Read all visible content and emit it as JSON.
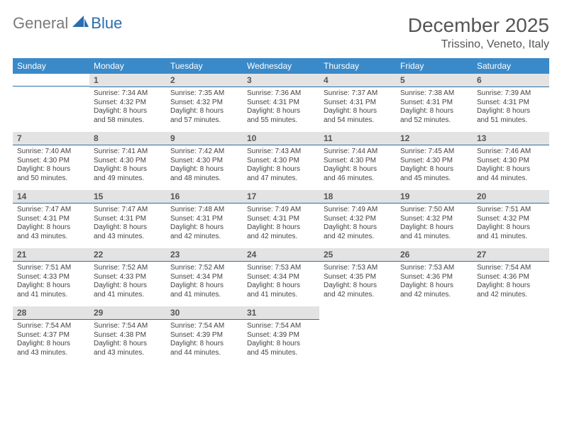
{
  "brand": {
    "general": "General",
    "blue": "Blue"
  },
  "title": "December 2025",
  "location": "Trissino, Veneto, Italy",
  "colors": {
    "header_bg": "#3a8ac9",
    "header_text": "#ffffff",
    "daynum_bg": "#e3e3e3",
    "daynum_text": "#555555",
    "rule": "#2e6fa8",
    "body_text": "#444444",
    "logo_gray": "#7a7a7a",
    "logo_blue": "#2a6db0"
  },
  "weekdays": [
    "Sunday",
    "Monday",
    "Tuesday",
    "Wednesday",
    "Thursday",
    "Friday",
    "Saturday"
  ],
  "weeks": [
    [
      null,
      {
        "n": "1",
        "sr": "Sunrise: 7:34 AM",
        "ss": "Sunset: 4:32 PM",
        "d1": "Daylight: 8 hours",
        "d2": "and 58 minutes."
      },
      {
        "n": "2",
        "sr": "Sunrise: 7:35 AM",
        "ss": "Sunset: 4:32 PM",
        "d1": "Daylight: 8 hours",
        "d2": "and 57 minutes."
      },
      {
        "n": "3",
        "sr": "Sunrise: 7:36 AM",
        "ss": "Sunset: 4:31 PM",
        "d1": "Daylight: 8 hours",
        "d2": "and 55 minutes."
      },
      {
        "n": "4",
        "sr": "Sunrise: 7:37 AM",
        "ss": "Sunset: 4:31 PM",
        "d1": "Daylight: 8 hours",
        "d2": "and 54 minutes."
      },
      {
        "n": "5",
        "sr": "Sunrise: 7:38 AM",
        "ss": "Sunset: 4:31 PM",
        "d1": "Daylight: 8 hours",
        "d2": "and 52 minutes."
      },
      {
        "n": "6",
        "sr": "Sunrise: 7:39 AM",
        "ss": "Sunset: 4:31 PM",
        "d1": "Daylight: 8 hours",
        "d2": "and 51 minutes."
      }
    ],
    [
      {
        "n": "7",
        "sr": "Sunrise: 7:40 AM",
        "ss": "Sunset: 4:30 PM",
        "d1": "Daylight: 8 hours",
        "d2": "and 50 minutes."
      },
      {
        "n": "8",
        "sr": "Sunrise: 7:41 AM",
        "ss": "Sunset: 4:30 PM",
        "d1": "Daylight: 8 hours",
        "d2": "and 49 minutes."
      },
      {
        "n": "9",
        "sr": "Sunrise: 7:42 AM",
        "ss": "Sunset: 4:30 PM",
        "d1": "Daylight: 8 hours",
        "d2": "and 48 minutes."
      },
      {
        "n": "10",
        "sr": "Sunrise: 7:43 AM",
        "ss": "Sunset: 4:30 PM",
        "d1": "Daylight: 8 hours",
        "d2": "and 47 minutes."
      },
      {
        "n": "11",
        "sr": "Sunrise: 7:44 AM",
        "ss": "Sunset: 4:30 PM",
        "d1": "Daylight: 8 hours",
        "d2": "and 46 minutes."
      },
      {
        "n": "12",
        "sr": "Sunrise: 7:45 AM",
        "ss": "Sunset: 4:30 PM",
        "d1": "Daylight: 8 hours",
        "d2": "and 45 minutes."
      },
      {
        "n": "13",
        "sr": "Sunrise: 7:46 AM",
        "ss": "Sunset: 4:30 PM",
        "d1": "Daylight: 8 hours",
        "d2": "and 44 minutes."
      }
    ],
    [
      {
        "n": "14",
        "sr": "Sunrise: 7:47 AM",
        "ss": "Sunset: 4:31 PM",
        "d1": "Daylight: 8 hours",
        "d2": "and 43 minutes."
      },
      {
        "n": "15",
        "sr": "Sunrise: 7:47 AM",
        "ss": "Sunset: 4:31 PM",
        "d1": "Daylight: 8 hours",
        "d2": "and 43 minutes."
      },
      {
        "n": "16",
        "sr": "Sunrise: 7:48 AM",
        "ss": "Sunset: 4:31 PM",
        "d1": "Daylight: 8 hours",
        "d2": "and 42 minutes."
      },
      {
        "n": "17",
        "sr": "Sunrise: 7:49 AM",
        "ss": "Sunset: 4:31 PM",
        "d1": "Daylight: 8 hours",
        "d2": "and 42 minutes."
      },
      {
        "n": "18",
        "sr": "Sunrise: 7:49 AM",
        "ss": "Sunset: 4:32 PM",
        "d1": "Daylight: 8 hours",
        "d2": "and 42 minutes."
      },
      {
        "n": "19",
        "sr": "Sunrise: 7:50 AM",
        "ss": "Sunset: 4:32 PM",
        "d1": "Daylight: 8 hours",
        "d2": "and 41 minutes."
      },
      {
        "n": "20",
        "sr": "Sunrise: 7:51 AM",
        "ss": "Sunset: 4:32 PM",
        "d1": "Daylight: 8 hours",
        "d2": "and 41 minutes."
      }
    ],
    [
      {
        "n": "21",
        "sr": "Sunrise: 7:51 AM",
        "ss": "Sunset: 4:33 PM",
        "d1": "Daylight: 8 hours",
        "d2": "and 41 minutes."
      },
      {
        "n": "22",
        "sr": "Sunrise: 7:52 AM",
        "ss": "Sunset: 4:33 PM",
        "d1": "Daylight: 8 hours",
        "d2": "and 41 minutes."
      },
      {
        "n": "23",
        "sr": "Sunrise: 7:52 AM",
        "ss": "Sunset: 4:34 PM",
        "d1": "Daylight: 8 hours",
        "d2": "and 41 minutes."
      },
      {
        "n": "24",
        "sr": "Sunrise: 7:53 AM",
        "ss": "Sunset: 4:34 PM",
        "d1": "Daylight: 8 hours",
        "d2": "and 41 minutes."
      },
      {
        "n": "25",
        "sr": "Sunrise: 7:53 AM",
        "ss": "Sunset: 4:35 PM",
        "d1": "Daylight: 8 hours",
        "d2": "and 42 minutes."
      },
      {
        "n": "26",
        "sr": "Sunrise: 7:53 AM",
        "ss": "Sunset: 4:36 PM",
        "d1": "Daylight: 8 hours",
        "d2": "and 42 minutes."
      },
      {
        "n": "27",
        "sr": "Sunrise: 7:54 AM",
        "ss": "Sunset: 4:36 PM",
        "d1": "Daylight: 8 hours",
        "d2": "and 42 minutes."
      }
    ],
    [
      {
        "n": "28",
        "sr": "Sunrise: 7:54 AM",
        "ss": "Sunset: 4:37 PM",
        "d1": "Daylight: 8 hours",
        "d2": "and 43 minutes."
      },
      {
        "n": "29",
        "sr": "Sunrise: 7:54 AM",
        "ss": "Sunset: 4:38 PM",
        "d1": "Daylight: 8 hours",
        "d2": "and 43 minutes."
      },
      {
        "n": "30",
        "sr": "Sunrise: 7:54 AM",
        "ss": "Sunset: 4:39 PM",
        "d1": "Daylight: 8 hours",
        "d2": "and 44 minutes."
      },
      {
        "n": "31",
        "sr": "Sunrise: 7:54 AM",
        "ss": "Sunset: 4:39 PM",
        "d1": "Daylight: 8 hours",
        "d2": "and 45 minutes."
      },
      null,
      null,
      null
    ]
  ]
}
